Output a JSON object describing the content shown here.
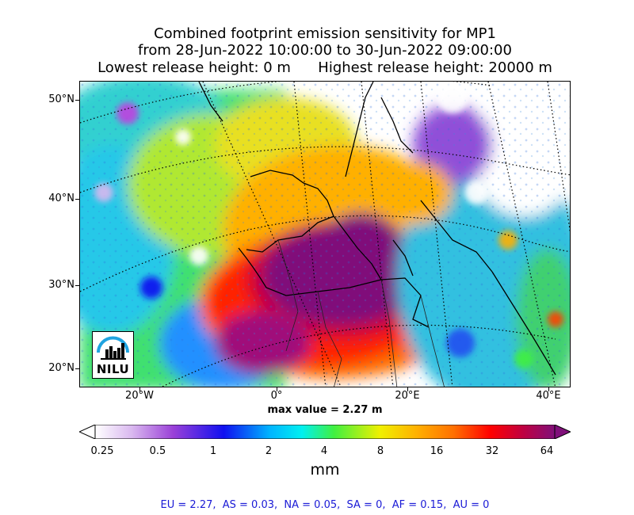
{
  "title": {
    "line1": "Combined footprint emission sensitivity for MP1",
    "line2": "from 28-Jun-2022 10:00:00 to 30-Jun-2022 09:00:00",
    "line3": "Lowest release height: 0 m      Highest release height: 20000 m"
  },
  "map": {
    "lat_labels": [
      "50°N",
      "40°N",
      "30°N",
      "20°N"
    ],
    "lon_labels": [
      "20°W",
      "0°",
      "20°E",
      "40°E"
    ],
    "max_value": "max value = 2.27 m",
    "logo": "NILU"
  },
  "colorbar": {
    "ticks": [
      "0.25",
      "0.5",
      "1",
      "2",
      "4",
      "8",
      "16",
      "32",
      "64"
    ],
    "unit": "mm",
    "colors": [
      "#ffffff",
      "#d9b8ef",
      "#9a40d8",
      "#1010f0",
      "#00b4ff",
      "#00f0f0",
      "#40f040",
      "#f0f000",
      "#ffb000",
      "#ff7000",
      "#ff0000",
      "#c00040",
      "#80107a"
    ]
  },
  "stats": "EU = 2.27,  AS = 0.03,  NA = 0.05,  SA = 0,  AF = 0.15,  AU = 0"
}
